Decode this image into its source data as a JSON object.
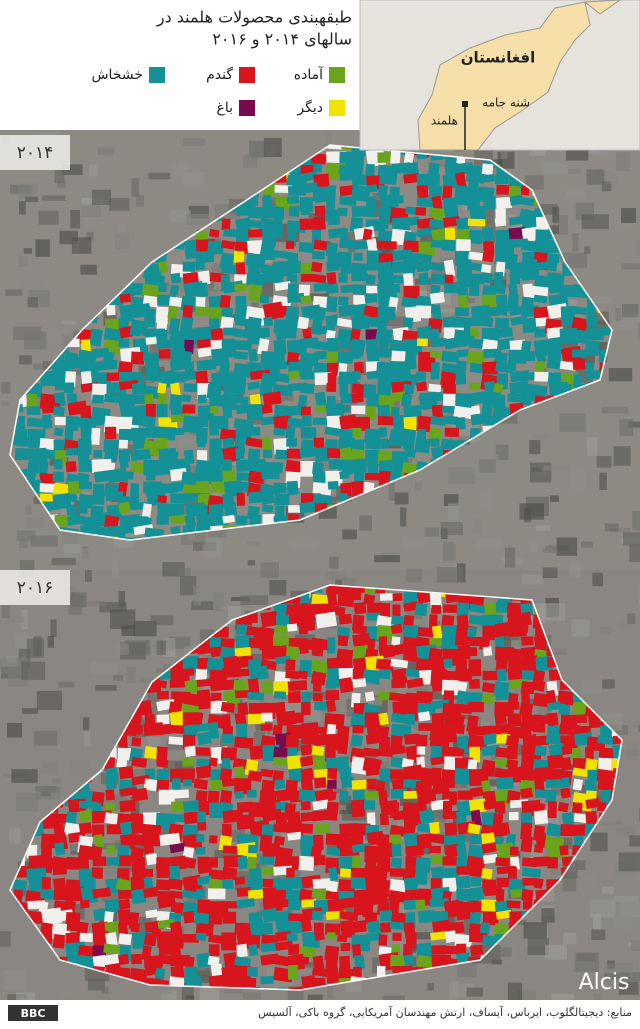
{
  "header": {
    "title_line1": "طبقهبندی محصولات هلمند در",
    "title_line2": "سالهای ۲۰۱۴ و ۲۰۱۶"
  },
  "legend": [
    {
      "label": "آماده",
      "color": "#6aa31c"
    },
    {
      "label": "گندم",
      "color": "#d8141c"
    },
    {
      "label": "خشخاش",
      "color": "#149097"
    },
    {
      "label": "دیگر",
      "color": "#f2e200"
    },
    {
      "label": "باغ",
      "color": "#7a0a4e"
    }
  ],
  "inset": {
    "country": "افغانستان",
    "place": "شنه جامه",
    "province": "هلمند"
  },
  "maps": [
    {
      "year": "۲۰۱۴"
    },
    {
      "year": "۲۰۱۶"
    }
  ],
  "footer": {
    "source": "منابع: دیجیتالگلوب، ایرباس، آیساف، ارتش مهندسان آمریکایی، گروه باکی، آلسیس",
    "brand": "Alcis",
    "logo": "BBC"
  }
}
